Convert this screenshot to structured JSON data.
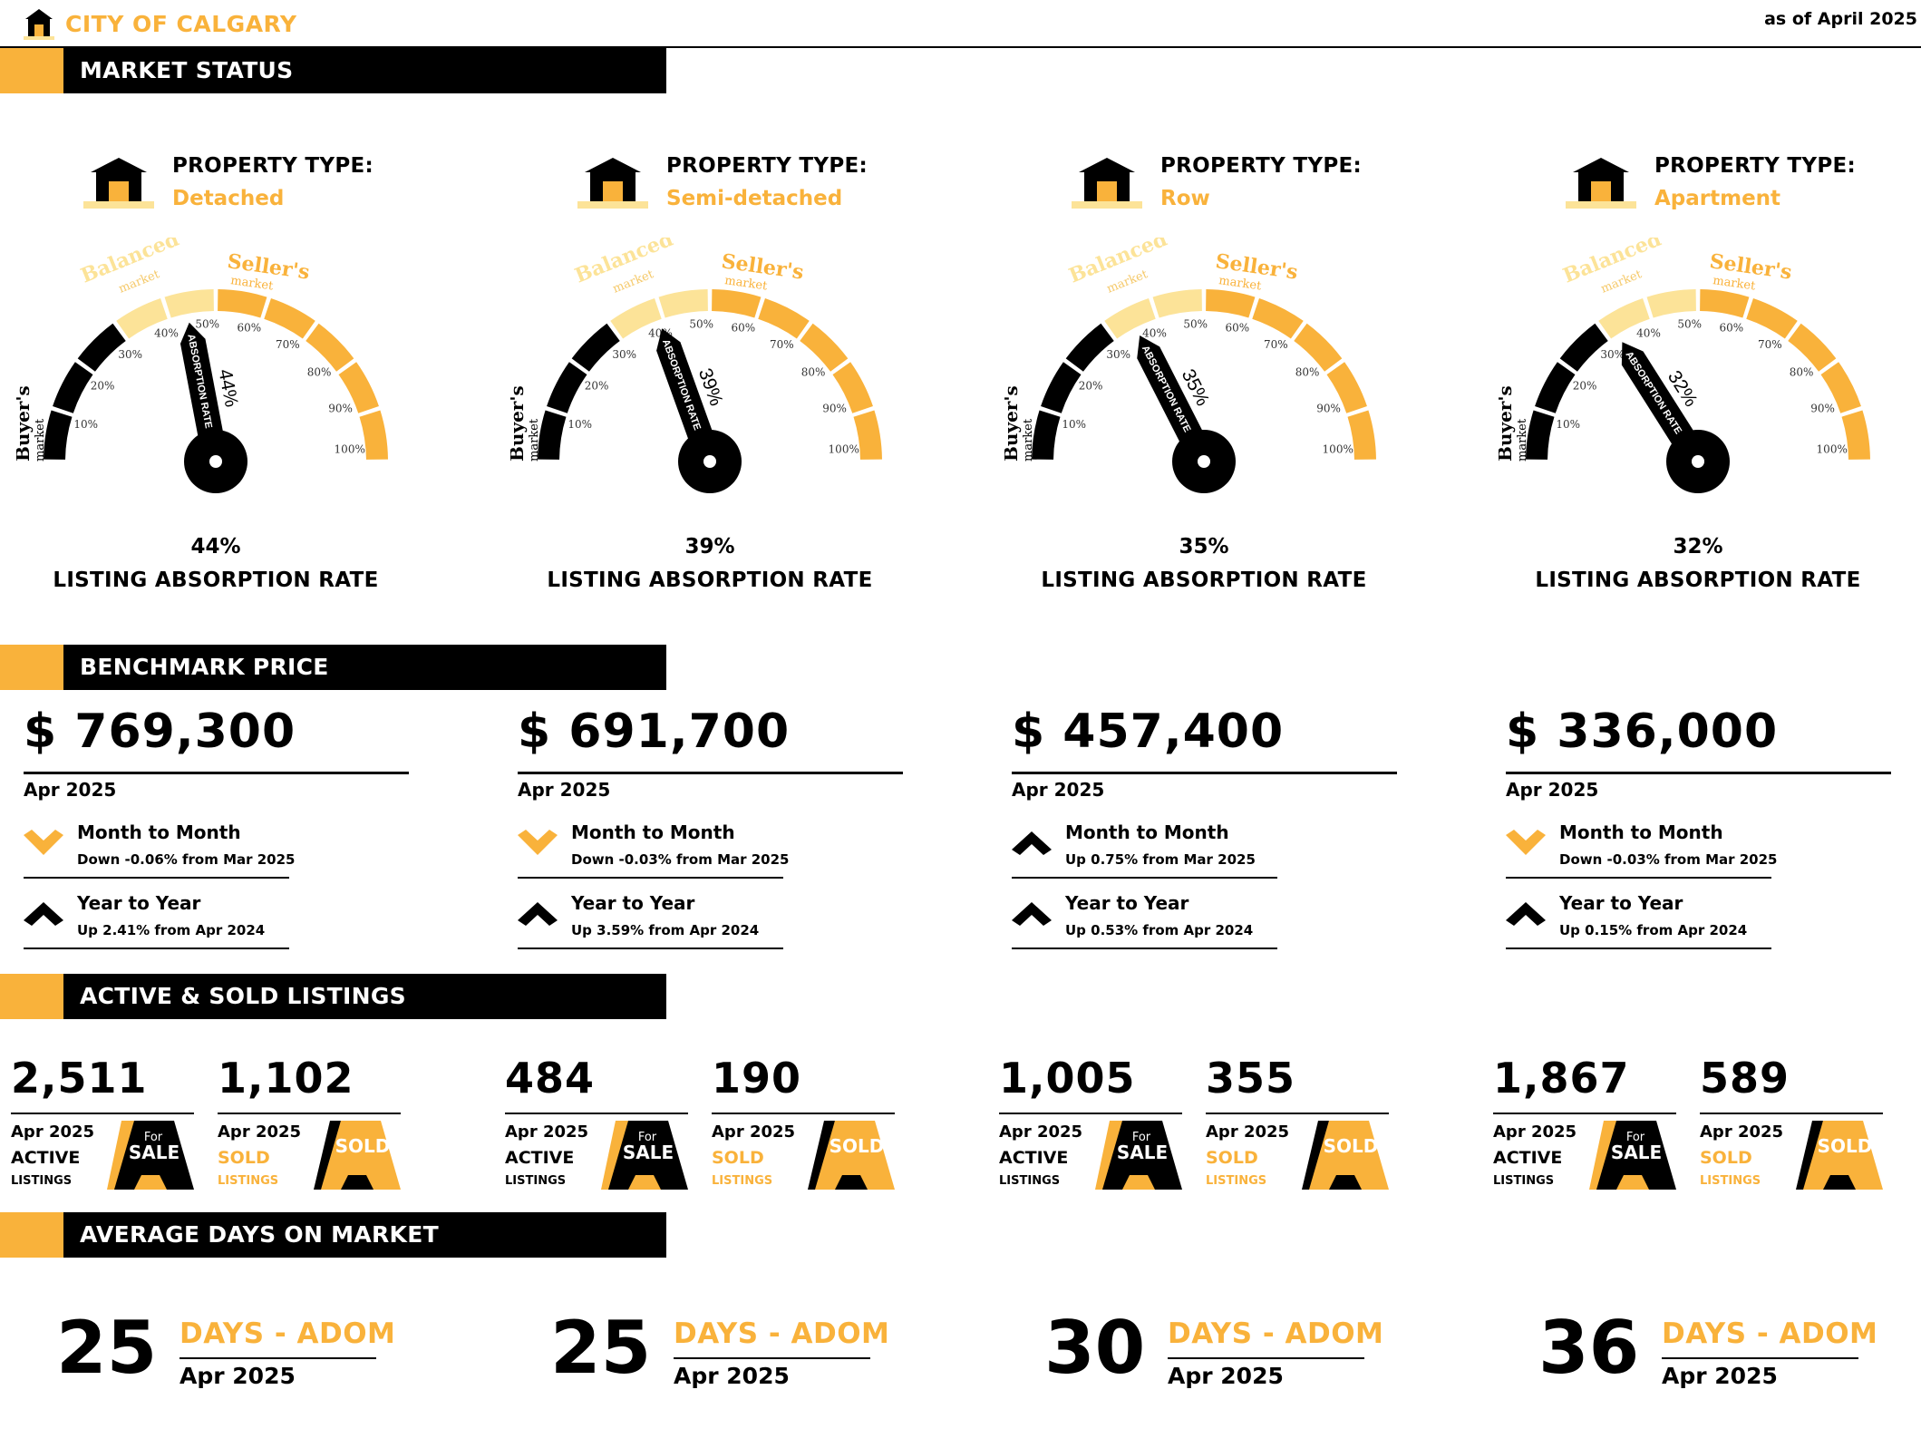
{
  "header": {
    "brand": "CITY OF CALGARY",
    "as_of": "as of April 2025"
  },
  "sections": {
    "market_status": "MARKET STATUS",
    "benchmark_price": "BENCHMARK PRICE",
    "active_sold": "ACTIVE & SOLD LISTINGS",
    "adom": "AVERAGE DAYS ON MARKET"
  },
  "gauge_labels": {
    "buyers": "Buyer's",
    "balanced": "Balanced",
    "sellers": "Seller's",
    "market": "market",
    "needle": "ABSORPTION RATE",
    "ticks": [
      "10%",
      "20%",
      "30%",
      "40%",
      "50%",
      "60%",
      "70%",
      "80%",
      "90%",
      "100%"
    ]
  },
  "colors": {
    "accent": "#f9b23b",
    "light_accent": "#fce398",
    "black": "#000000"
  },
  "property_label": "PROPERTY TYPE:",
  "absorption_label": "LISTING ABSORPTION RATE",
  "listing_labels": {
    "active": "ACTIVE",
    "sold": "SOLD",
    "listings": "LISTINGS",
    "for": "For",
    "sale": "SALE",
    "sold_sign": "SOLD"
  },
  "days_label": "DAYS - ADOM",
  "properties": [
    {
      "type": "Detached",
      "rate_value": 44,
      "rate": "44%",
      "price": "$ 769,300",
      "price_date": "Apr 2025",
      "mtm": {
        "title": "Month to Month",
        "text": "Down -0.06% from Mar 2025",
        "dir": "down"
      },
      "yty": {
        "title": "Year to Year",
        "text": "Up 2.41% from Apr 2024",
        "dir": "up"
      },
      "active": "2,511",
      "active_date": "Apr 2025",
      "sold": "1,102",
      "sold_date": "Apr 2025",
      "days": "25",
      "days_date": "Apr 2025"
    },
    {
      "type": "Semi-detached",
      "rate_value": 39,
      "rate": "39%",
      "price": "$ 691,700",
      "price_date": "Apr 2025",
      "mtm": {
        "title": "Month to Month",
        "text": "Down -0.03% from Mar 2025",
        "dir": "down"
      },
      "yty": {
        "title": "Year to Year",
        "text": "Up 3.59% from Apr 2024",
        "dir": "up"
      },
      "active": "484",
      "active_date": "Apr 2025",
      "sold": "190",
      "sold_date": "Apr 2025",
      "days": "25",
      "days_date": "Apr 2025"
    },
    {
      "type": "Row",
      "rate_value": 35,
      "rate": "35%",
      "price": "$ 457,400",
      "price_date": "Apr 2025",
      "mtm": {
        "title": "Month to Month",
        "text": "Up 0.75% from Mar 2025",
        "dir": "up"
      },
      "yty": {
        "title": "Year to Year",
        "text": "Up 0.53% from Apr 2024",
        "dir": "up"
      },
      "active": "1,005",
      "active_date": "Apr 2025",
      "sold": "355",
      "sold_date": "Apr 2025",
      "days": "30",
      "days_date": "Apr 2025"
    },
    {
      "type": "Apartment",
      "rate_value": 32,
      "rate": "32%",
      "price": "$ 336,000",
      "price_date": "Apr 2025",
      "mtm": {
        "title": "Month to Month",
        "text": "Down -0.03% from Mar 2025",
        "dir": "down"
      },
      "yty": {
        "title": "Year to Year",
        "text": "Up 0.15% from Apr 2024",
        "dir": "up"
      },
      "active": "1,867",
      "active_date": "Apr 2025",
      "sold": "589",
      "sold_date": "Apr 2025",
      "days": "36",
      "days_date": "Apr 2025"
    }
  ]
}
